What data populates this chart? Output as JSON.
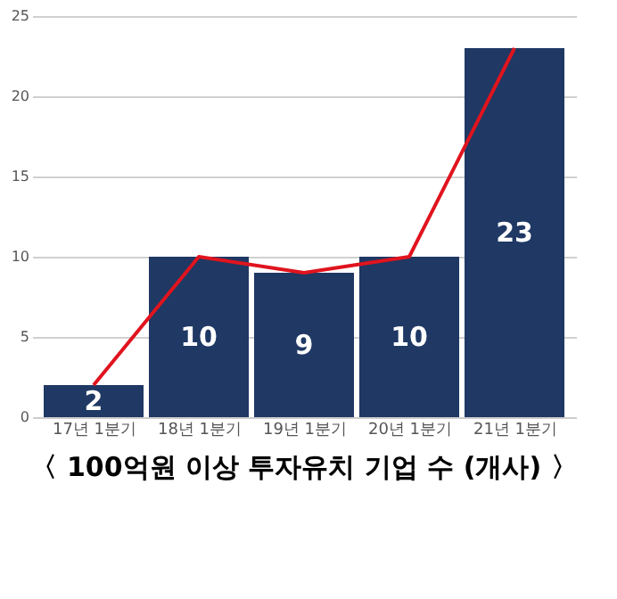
{
  "chart_data": {
    "type": "bar",
    "title": "〈 100억원 이상 투자유치 기업 수 (개사) 〉",
    "categories": [
      "17년 1분기",
      "18년 1분기",
      "19년 1분기",
      "20년 1분기",
      "21년 1분기"
    ],
    "series": [
      {
        "color": "#1f3864",
        "values": [
          2,
          10,
          9,
          10,
          23
        ],
        "value_labels": [
          "2",
          "10",
          "9",
          "10",
          "23"
        ]
      },
      {
        "type": "line",
        "color": "#e0141e",
        "values": [
          2,
          10,
          9,
          10,
          23
        ]
      }
    ],
    "ylim": [
      0,
      25
    ],
    "yticks": [
      0,
      5,
      10,
      15,
      20,
      25
    ],
    "grid": "y"
  }
}
